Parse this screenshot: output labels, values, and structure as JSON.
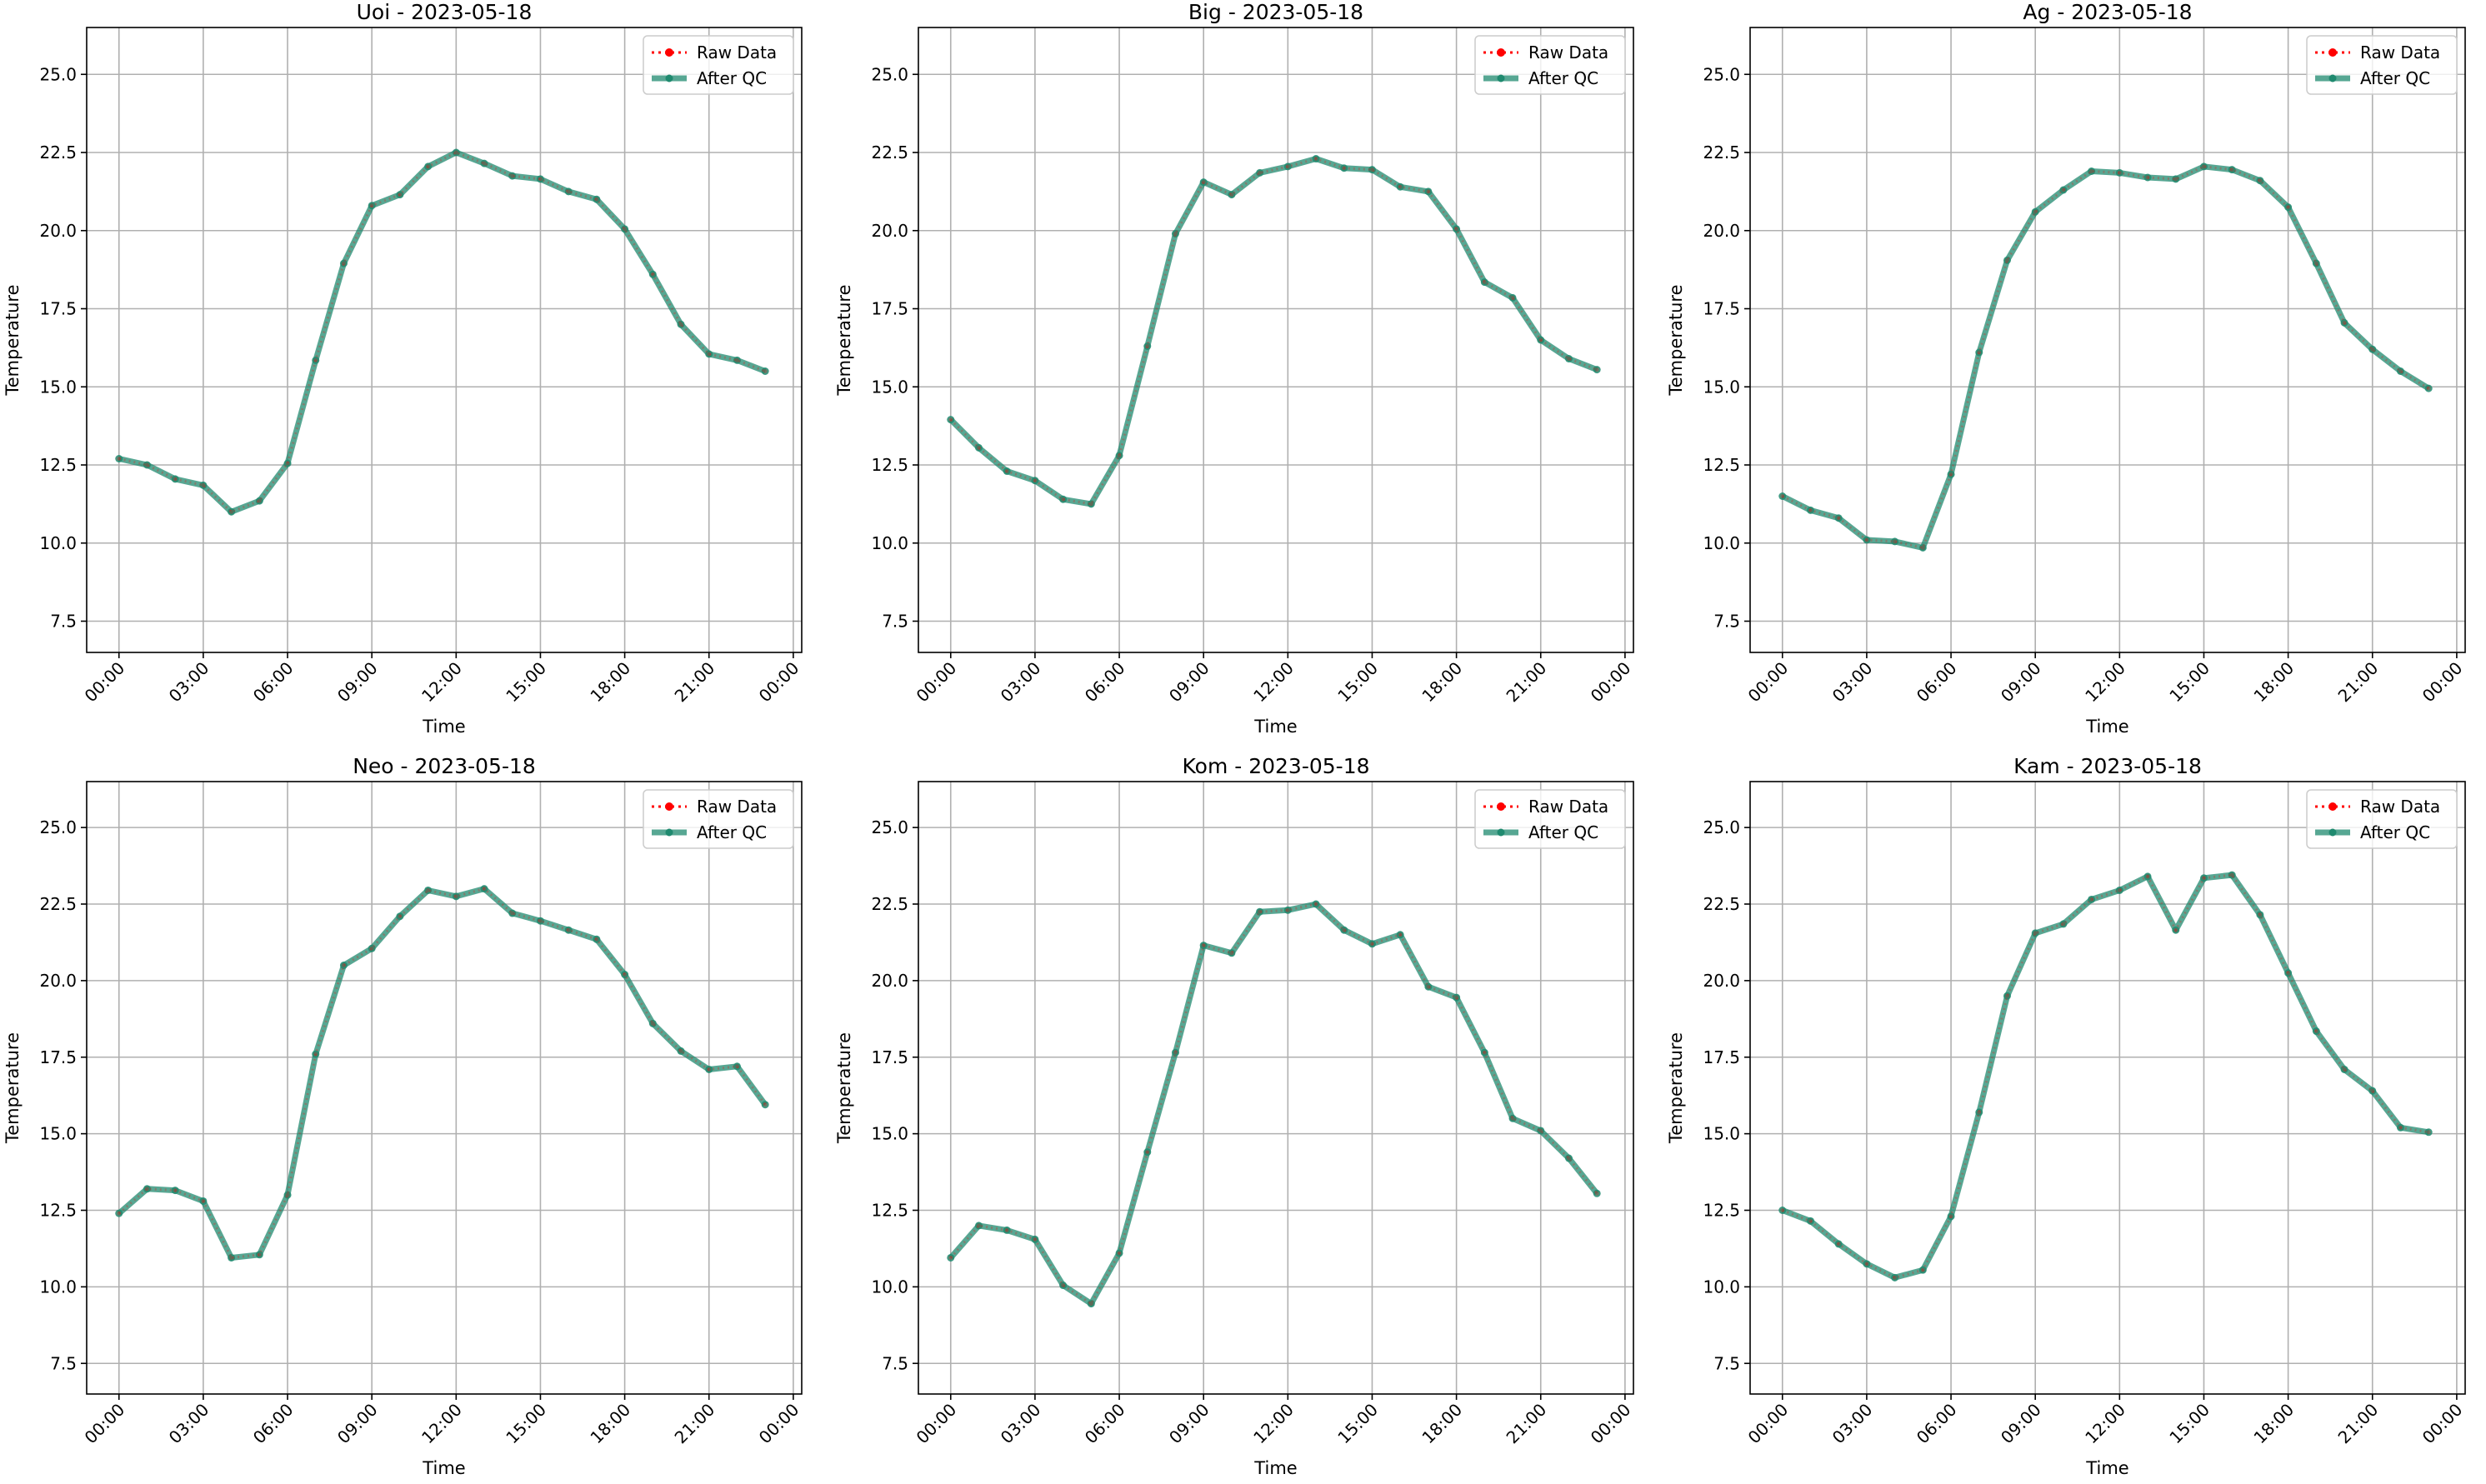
{
  "chart_data": [
    {
      "type": "line",
      "title": "Uoi - 2023-05-18",
      "xlabel": "Time",
      "ylabel": "Temperature",
      "ylim": [
        6.5,
        26.5
      ],
      "y_ticks": [
        "7.5",
        "10.0",
        "12.5",
        "15.0",
        "17.5",
        "20.0",
        "22.5",
        "25.0"
      ],
      "x_ticks": [
        "00:00",
        "03:00",
        "06:00",
        "09:00",
        "12:00",
        "15:00",
        "18:00",
        "21:00",
        "00:00"
      ],
      "grid": true,
      "legend_position": "top-right",
      "x": [
        "00:00",
        "01:00",
        "02:00",
        "03:00",
        "04:00",
        "05:00",
        "06:00",
        "07:00",
        "08:00",
        "09:00",
        "10:00",
        "11:00",
        "12:00",
        "13:00",
        "14:00",
        "15:00",
        "16:00",
        "17:00",
        "18:00",
        "19:00",
        "20:00",
        "21:00",
        "22:00",
        "23:00"
      ],
      "series": [
        {
          "name": "Raw Data",
          "values": [
            12.7,
            12.5,
            12.05,
            11.85,
            11.0,
            11.35,
            12.55,
            15.85,
            18.95,
            20.8,
            21.15,
            22.05,
            22.5,
            22.15,
            21.75,
            21.65,
            21.25,
            21.0,
            20.05,
            18.6,
            17.0,
            16.05,
            15.85,
            15.5
          ]
        },
        {
          "name": "After QC",
          "values": [
            12.7,
            12.5,
            12.05,
            11.85,
            11.0,
            11.35,
            12.55,
            15.85,
            18.95,
            20.8,
            21.15,
            22.05,
            22.5,
            22.15,
            21.75,
            21.65,
            21.25,
            21.0,
            20.05,
            18.6,
            17.0,
            16.05,
            15.85,
            15.5
          ]
        }
      ]
    },
    {
      "type": "line",
      "title": "Big - 2023-05-18",
      "xlabel": "Time",
      "ylabel": "Temperature",
      "ylim": [
        6.5,
        26.5
      ],
      "y_ticks": [
        "7.5",
        "10.0",
        "12.5",
        "15.0",
        "17.5",
        "20.0",
        "22.5",
        "25.0"
      ],
      "x_ticks": [
        "00:00",
        "03:00",
        "06:00",
        "09:00",
        "12:00",
        "15:00",
        "18:00",
        "21:00",
        "00:00"
      ],
      "grid": true,
      "legend_position": "top-right",
      "x": [
        "00:00",
        "01:00",
        "02:00",
        "03:00",
        "04:00",
        "05:00",
        "06:00",
        "07:00",
        "08:00",
        "09:00",
        "10:00",
        "11:00",
        "12:00",
        "13:00",
        "14:00",
        "15:00",
        "16:00",
        "17:00",
        "18:00",
        "19:00",
        "20:00",
        "21:00",
        "22:00",
        "23:00"
      ],
      "series": [
        {
          "name": "Raw Data",
          "values": [
            13.95,
            13.05,
            12.3,
            12.0,
            11.4,
            11.25,
            12.8,
            16.3,
            19.9,
            21.55,
            21.15,
            21.85,
            22.05,
            22.3,
            22.0,
            21.95,
            21.4,
            21.25,
            20.05,
            18.35,
            17.85,
            16.5,
            15.9,
            15.55
          ]
        },
        {
          "name": "After QC",
          "values": [
            13.95,
            13.05,
            12.3,
            12.0,
            11.4,
            11.25,
            12.8,
            16.3,
            19.9,
            21.55,
            21.15,
            21.85,
            22.05,
            22.3,
            22.0,
            21.95,
            21.4,
            21.25,
            20.05,
            18.35,
            17.85,
            16.5,
            15.9,
            15.55
          ]
        }
      ]
    },
    {
      "type": "line",
      "title": "Ag - 2023-05-18",
      "xlabel": "Time",
      "ylabel": "Temperature",
      "ylim": [
        6.5,
        26.5
      ],
      "y_ticks": [
        "7.5",
        "10.0",
        "12.5",
        "15.0",
        "17.5",
        "20.0",
        "22.5",
        "25.0"
      ],
      "x_ticks": [
        "00:00",
        "03:00",
        "06:00",
        "09:00",
        "12:00",
        "15:00",
        "18:00",
        "21:00",
        "00:00"
      ],
      "grid": true,
      "legend_position": "top-right",
      "x": [
        "00:00",
        "01:00",
        "02:00",
        "03:00",
        "04:00",
        "05:00",
        "06:00",
        "07:00",
        "08:00",
        "09:00",
        "10:00",
        "11:00",
        "12:00",
        "13:00",
        "14:00",
        "15:00",
        "16:00",
        "17:00",
        "18:00",
        "19:00",
        "20:00",
        "21:00",
        "22:00",
        "23:00"
      ],
      "series": [
        {
          "name": "Raw Data",
          "values": [
            11.5,
            11.05,
            10.8,
            10.1,
            10.05,
            9.85,
            12.2,
            16.1,
            19.05,
            20.6,
            21.3,
            21.9,
            21.85,
            21.7,
            21.65,
            22.05,
            21.95,
            21.6,
            20.75,
            18.95,
            17.05,
            16.2,
            15.5,
            14.95
          ]
        },
        {
          "name": "After QC",
          "values": [
            11.5,
            11.05,
            10.8,
            10.1,
            10.05,
            9.85,
            12.2,
            16.1,
            19.05,
            20.6,
            21.3,
            21.9,
            21.85,
            21.7,
            21.65,
            22.05,
            21.95,
            21.6,
            20.75,
            18.95,
            17.05,
            16.2,
            15.5,
            14.95
          ]
        }
      ]
    },
    {
      "type": "line",
      "title": "Neo - 2023-05-18",
      "xlabel": "Time",
      "ylabel": "Temperature",
      "ylim": [
        6.5,
        26.5
      ],
      "y_ticks": [
        "7.5",
        "10.0",
        "12.5",
        "15.0",
        "17.5",
        "20.0",
        "22.5",
        "25.0"
      ],
      "x_ticks": [
        "00:00",
        "03:00",
        "06:00",
        "09:00",
        "12:00",
        "15:00",
        "18:00",
        "21:00",
        "00:00"
      ],
      "grid": true,
      "legend_position": "top-right",
      "x": [
        "00:00",
        "01:00",
        "02:00",
        "03:00",
        "04:00",
        "05:00",
        "06:00",
        "07:00",
        "08:00",
        "09:00",
        "10:00",
        "11:00",
        "12:00",
        "13:00",
        "14:00",
        "15:00",
        "16:00",
        "17:00",
        "18:00",
        "19:00",
        "20:00",
        "21:00",
        "22:00",
        "23:00"
      ],
      "series": [
        {
          "name": "Raw Data",
          "values": [
            12.4,
            13.2,
            13.15,
            12.8,
            10.95,
            11.05,
            13.0,
            17.6,
            20.5,
            21.05,
            22.1,
            22.95,
            22.75,
            23.0,
            22.2,
            21.95,
            21.65,
            21.35,
            20.2,
            18.6,
            17.7,
            17.1,
            17.2,
            15.95
          ]
        },
        {
          "name": "After QC",
          "values": [
            12.4,
            13.2,
            13.15,
            12.8,
            10.95,
            11.05,
            13.0,
            17.6,
            20.5,
            21.05,
            22.1,
            22.95,
            22.75,
            23.0,
            22.2,
            21.95,
            21.65,
            21.35,
            20.2,
            18.6,
            17.7,
            17.1,
            17.2,
            15.95
          ]
        }
      ]
    },
    {
      "type": "line",
      "title": "Kom - 2023-05-18",
      "xlabel": "Time",
      "ylabel": "Temperature",
      "ylim": [
        6.5,
        26.5
      ],
      "y_ticks": [
        "7.5",
        "10.0",
        "12.5",
        "15.0",
        "17.5",
        "20.0",
        "22.5",
        "25.0"
      ],
      "x_ticks": [
        "00:00",
        "03:00",
        "06:00",
        "09:00",
        "12:00",
        "15:00",
        "18:00",
        "21:00",
        "00:00"
      ],
      "grid": true,
      "legend_position": "top-right",
      "x": [
        "00:00",
        "01:00",
        "02:00",
        "03:00",
        "04:00",
        "05:00",
        "06:00",
        "07:00",
        "08:00",
        "09:00",
        "10:00",
        "11:00",
        "12:00",
        "13:00",
        "14:00",
        "15:00",
        "16:00",
        "17:00",
        "18:00",
        "19:00",
        "20:00",
        "21:00",
        "22:00",
        "23:00"
      ],
      "series": [
        {
          "name": "Raw Data",
          "values": [
            10.95,
            12.0,
            11.85,
            11.55,
            10.05,
            9.45,
            11.1,
            14.4,
            17.65,
            21.15,
            20.9,
            22.25,
            22.3,
            22.5,
            21.65,
            21.2,
            21.5,
            19.8,
            19.45,
            17.65,
            15.5,
            15.1,
            14.2,
            13.05
          ]
        },
        {
          "name": "After QC",
          "values": [
            10.95,
            12.0,
            11.85,
            11.55,
            10.05,
            9.45,
            11.1,
            14.4,
            17.65,
            21.15,
            20.9,
            22.25,
            22.3,
            22.5,
            21.65,
            21.2,
            21.5,
            19.8,
            19.45,
            17.65,
            15.5,
            15.1,
            14.2,
            13.05
          ]
        }
      ]
    },
    {
      "type": "line",
      "title": "Kam - 2023-05-18",
      "xlabel": "Time",
      "ylabel": "Temperature",
      "ylim": [
        6.5,
        26.5
      ],
      "y_ticks": [
        "7.5",
        "10.0",
        "12.5",
        "15.0",
        "17.5",
        "20.0",
        "22.5",
        "25.0"
      ],
      "x_ticks": [
        "00:00",
        "03:00",
        "06:00",
        "09:00",
        "12:00",
        "15:00",
        "18:00",
        "21:00",
        "00:00"
      ],
      "grid": true,
      "legend_position": "top-right",
      "x": [
        "00:00",
        "01:00",
        "02:00",
        "03:00",
        "04:00",
        "05:00",
        "06:00",
        "07:00",
        "08:00",
        "09:00",
        "10:00",
        "11:00",
        "12:00",
        "13:00",
        "14:00",
        "15:00",
        "16:00",
        "17:00",
        "18:00",
        "19:00",
        "20:00",
        "21:00",
        "22:00",
        "23:00"
      ],
      "series": [
        {
          "name": "Raw Data",
          "values": [
            12.5,
            12.15,
            11.4,
            10.75,
            10.3,
            10.55,
            12.3,
            15.7,
            19.5,
            21.55,
            21.85,
            22.65,
            22.95,
            23.4,
            21.65,
            23.35,
            23.45,
            22.15,
            20.25,
            18.35,
            17.1,
            16.4,
            15.2,
            15.05
          ]
        },
        {
          "name": "After QC",
          "values": [
            12.5,
            12.15,
            11.4,
            10.75,
            10.3,
            10.55,
            12.3,
            15.7,
            19.5,
            21.55,
            21.85,
            22.65,
            22.95,
            23.4,
            21.65,
            23.35,
            23.45,
            22.15,
            20.25,
            18.35,
            17.1,
            16.4,
            15.2,
            15.05
          ]
        }
      ]
    }
  ],
  "colors": {
    "raw": "#ff0000",
    "qc": "#1f8a6f",
    "grid": "#b0b0b0",
    "axis": "#000000"
  }
}
